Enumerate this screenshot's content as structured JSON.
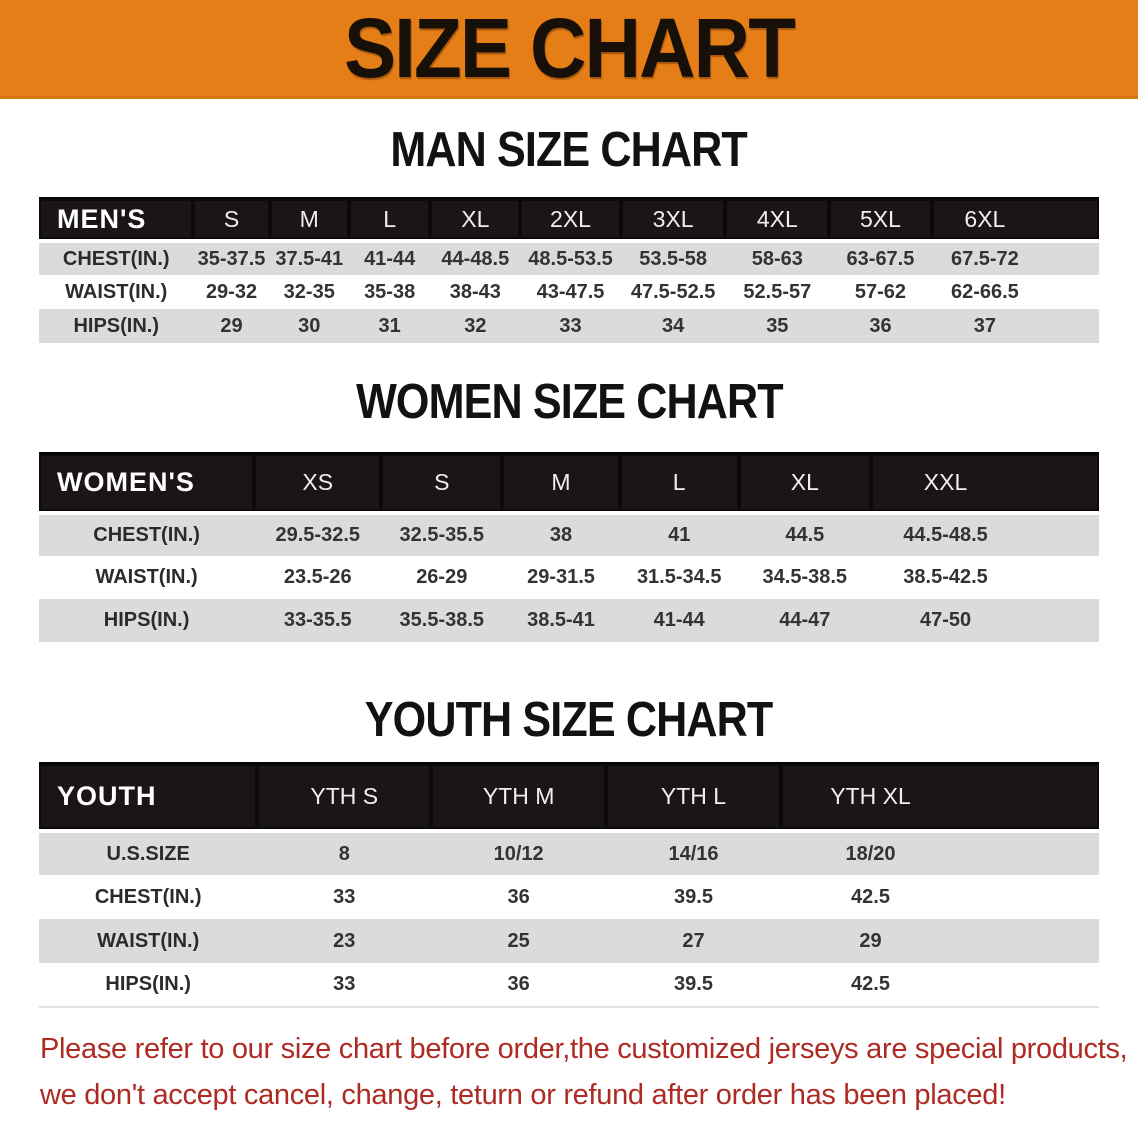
{
  "banner": {
    "title": "SIZE CHART"
  },
  "colors": {
    "banner_bg": "#E67E17",
    "header_bar": "#1B1515",
    "stripe": "#DBDBDB",
    "footer_red": "#AE2B24"
  },
  "sections": [
    {
      "heading": "MAN SIZE CHART",
      "table": {
        "label": "MEN'S",
        "columns": [
          "S",
          "M",
          "L",
          "XL",
          "2XL",
          "3XL",
          "4XL",
          "5XL",
          "6XL"
        ],
        "rows": [
          {
            "label": "CHEST(IN.)",
            "values": [
              "35-37.5",
              "37.5-41",
              "41-44",
              "44-48.5",
              "48.5-53.5",
              "53.5-58",
              "58-63",
              "63-67.5",
              "67.5-72"
            ]
          },
          {
            "label": "WAIST(IN.)",
            "values": [
              "29-32",
              "32-35",
              "35-38",
              "38-43",
              "43-47.5",
              "47.5-52.5",
              "52.5-57",
              "57-62",
              "62-66.5"
            ]
          },
          {
            "label": "HIPS(IN.)",
            "values": [
              "29",
              "30",
              "31",
              "32",
              "33",
              "34",
              "35",
              "36",
              "37"
            ]
          }
        ]
      }
    },
    {
      "heading": "WOMEN SIZE CHART",
      "table": {
        "label": "WOMEN'S",
        "columns": [
          "XS",
          "S",
          "M",
          "L",
          "XL",
          "XXL"
        ],
        "rows": [
          {
            "label": "CHEST(IN.)",
            "values": [
              "29.5-32.5",
              "32.5-35.5",
              "38",
              "41",
              "44.5",
              "44.5-48.5"
            ]
          },
          {
            "label": "WAIST(IN.)",
            "values": [
              "23.5-26",
              "26-29",
              "29-31.5",
              "31.5-34.5",
              "34.5-38.5",
              "38.5-42.5"
            ]
          },
          {
            "label": "HIPS(IN.)",
            "values": [
              "33-35.5",
              "35.5-38.5",
              "38.5-41",
              "41-44",
              "44-47",
              "47-50"
            ]
          }
        ]
      }
    },
    {
      "heading": "YOUTH SIZE CHART",
      "table": {
        "label": "YOUTH",
        "columns": [
          "YTH S",
          "YTH M",
          "YTH L",
          "YTH XL"
        ],
        "rows": [
          {
            "label": "U.S.SIZE",
            "values": [
              "8",
              "10/12",
              "14/16",
              "18/20"
            ]
          },
          {
            "label": "CHEST(IN.)",
            "values": [
              "33",
              "36",
              "39.5",
              "42.5"
            ]
          },
          {
            "label": "WAIST(IN.)",
            "values": [
              "23",
              "25",
              "27",
              "29"
            ]
          },
          {
            "label": "HIPS(IN.)",
            "values": [
              "33",
              "36",
              "39.5",
              "42.5"
            ]
          }
        ]
      }
    }
  ],
  "footer": {
    "line1": "Please refer to our size chart before order,the customized jerseys are special products,",
    "line2": "we don't accept cancel, change, teturn or refund after order has been placed!"
  }
}
